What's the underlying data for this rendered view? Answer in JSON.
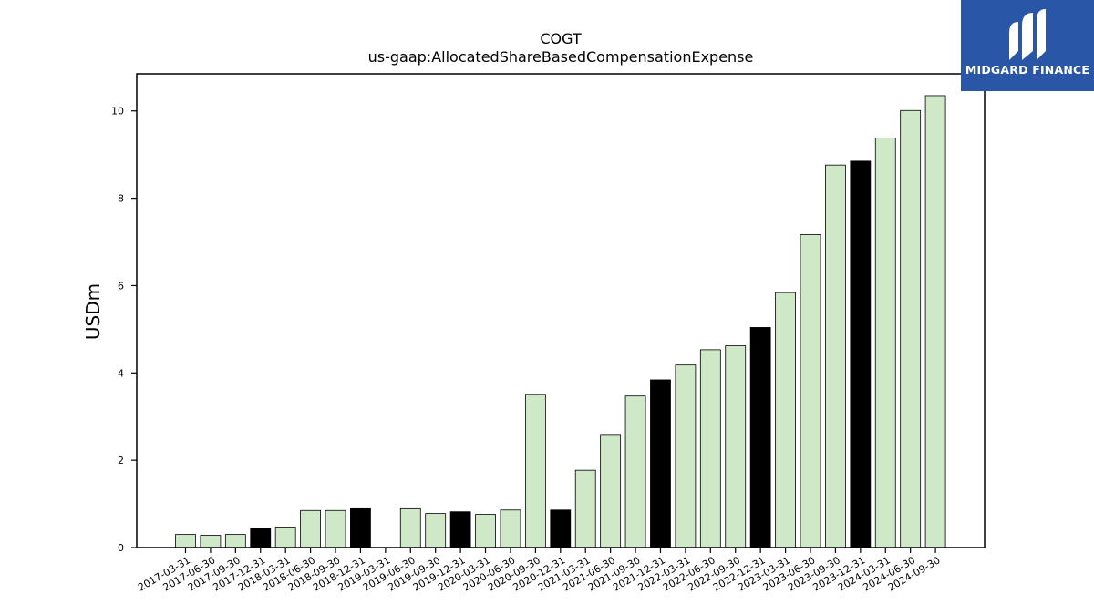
{
  "logo": {
    "text": "MIDGARD FINANCE"
  },
  "colors": {
    "annual_bar": "#000000",
    "quarter_bar": "#cfe9c8",
    "bar_edge": "#000000",
    "logo_bg": "#2a56a8"
  },
  "chart_data": {
    "type": "bar",
    "title": "COGT",
    "subtitle": "us-gaap:AllocatedShareBasedCompensationExpense",
    "ylabel": "USDm",
    "xlabel": "",
    "ylim": [
      0,
      10.85
    ],
    "yticks": [
      0,
      2,
      4,
      6,
      8,
      10
    ],
    "grid": false,
    "categories": [
      "2017-03-31",
      "2017-06-30",
      "2017-09-30",
      "2017-12-31",
      "2018-03-31",
      "2018-06-30",
      "2018-09-30",
      "2018-12-31",
      "2019-03-31",
      "2019-06-30",
      "2019-09-30",
      "2019-12-31",
      "2020-03-31",
      "2020-06-30",
      "2020-09-30",
      "2020-12-31",
      "2021-03-31",
      "2021-06-30",
      "2021-09-30",
      "2021-12-31",
      "2022-03-31",
      "2022-06-30",
      "2022-09-30",
      "2022-12-31",
      "2023-03-31",
      "2023-06-30",
      "2023-09-30",
      "2023-12-31",
      "2024-03-31",
      "2024-06-30",
      "2024-09-30"
    ],
    "values": [
      0.3,
      0.28,
      0.3,
      0.45,
      0.47,
      0.85,
      0.85,
      0.89,
      null,
      0.89,
      0.78,
      0.82,
      0.76,
      0.86,
      3.51,
      0.86,
      1.77,
      2.59,
      3.47,
      3.84,
      4.18,
      4.53,
      4.62,
      5.04,
      5.84,
      7.17,
      8.76,
      8.85,
      9.38,
      10.01,
      10.35
    ],
    "annual": [
      false,
      false,
      false,
      true,
      false,
      false,
      false,
      true,
      false,
      false,
      false,
      true,
      false,
      false,
      false,
      true,
      false,
      false,
      false,
      true,
      false,
      false,
      false,
      true,
      false,
      false,
      false,
      true,
      false,
      false,
      false
    ]
  }
}
